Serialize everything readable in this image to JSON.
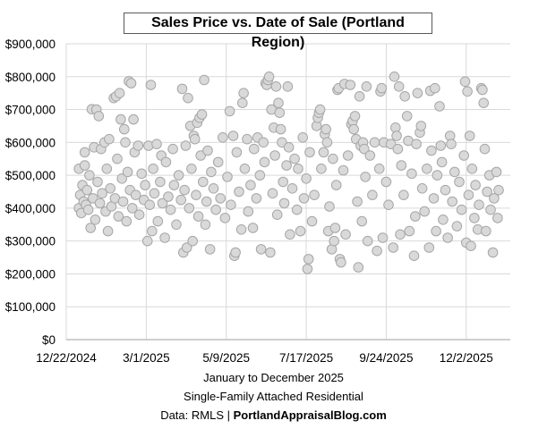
{
  "chart_data": {
    "type": "scatter",
    "title": "Sales Price vs. Date of Sale (Portland Region)",
    "captions": [
      "January to December 2025",
      "Single-Family Attached Residential"
    ],
    "source_label": "Data: RMLS |",
    "source_site": "PortlandAppraisalBlog.com",
    "xlim": [
      "2024-12-22",
      "2026-01-09"
    ],
    "ylim": [
      0,
      900000
    ],
    "x_ticks": [
      "12/22/2024",
      "3/1/2025",
      "5/9/2025",
      "7/17/2025",
      "9/24/2025",
      "12/2/2025"
    ],
    "x_tick_dates": [
      "2024-12-22",
      "2025-03-01",
      "2025-05-09",
      "2025-07-17",
      "2025-09-24",
      "2025-12-02"
    ],
    "y_ticks": [
      "$0",
      "$100,000",
      "$200,000",
      "$300,000",
      "$400,000",
      "$500,000",
      "$600,000",
      "$700,000",
      "$800,000",
      "$900,000"
    ],
    "y_tick_values": [
      0,
      100000,
      200000,
      300000,
      400000,
      500000,
      600000,
      700000,
      800000,
      900000
    ],
    "grid": true,
    "legend": "none",
    "colors": {
      "marker_fill": "#d9d9d9",
      "marker_stroke": "#a6a6a6",
      "grid": "#d9d9d9"
    },
    "points": [
      [
        "2025-01-02",
        400000
      ],
      [
        "2025-01-02",
        520000
      ],
      [
        "2025-01-03",
        440000
      ],
      [
        "2025-01-04",
        385000
      ],
      [
        "2025-01-05",
        470000
      ],
      [
        "2025-01-06",
        420000
      ],
      [
        "2025-01-07",
        570000
      ],
      [
        "2025-01-07",
        530000
      ],
      [
        "2025-01-08",
        410000
      ],
      [
        "2025-01-09",
        455000
      ],
      [
        "2025-01-10",
        395000
      ],
      [
        "2025-01-11",
        500000
      ],
      [
        "2025-01-12",
        340000
      ],
      [
        "2025-01-13",
        701000
      ],
      [
        "2025-01-14",
        430000
      ],
      [
        "2025-01-15",
        585000
      ],
      [
        "2025-01-16",
        365000
      ],
      [
        "2025-01-17",
        700000
      ],
      [
        "2025-01-18",
        480000
      ],
      [
        "2025-01-19",
        680000
      ],
      [
        "2025-01-20",
        415000
      ],
      [
        "2025-01-21",
        580000
      ],
      [
        "2025-01-22",
        445000
      ],
      [
        "2025-01-24",
        600000
      ],
      [
        "2025-01-25",
        390000
      ],
      [
        "2025-01-26",
        520000
      ],
      [
        "2025-01-27",
        330000
      ],
      [
        "2025-01-28",
        610000
      ],
      [
        "2025-01-29",
        460000
      ],
      [
        "2025-01-30",
        405000
      ],
      [
        "2025-02-01",
        735000
      ],
      [
        "2025-02-02",
        430000
      ],
      [
        "2025-02-03",
        740000
      ],
      [
        "2025-02-04",
        550000
      ],
      [
        "2025-02-05",
        375000
      ],
      [
        "2025-02-06",
        750000
      ],
      [
        "2025-02-07",
        670000
      ],
      [
        "2025-02-08",
        490000
      ],
      [
        "2025-02-09",
        420000
      ],
      [
        "2025-02-10",
        640000
      ],
      [
        "2025-02-11",
        600000
      ],
      [
        "2025-02-12",
        360000
      ],
      [
        "2025-02-13",
        510000
      ],
      [
        "2025-02-14",
        786000
      ],
      [
        "2025-02-15",
        455000
      ],
      [
        "2025-02-16",
        780000
      ],
      [
        "2025-02-17",
        400000
      ],
      [
        "2025-02-18",
        670000
      ],
      [
        "2025-02-19",
        570000
      ],
      [
        "2025-02-20",
        440000
      ],
      [
        "2025-02-22",
        590000
      ],
      [
        "2025-02-23",
        380000
      ],
      [
        "2025-02-25",
        505000
      ],
      [
        "2025-02-27",
        425000
      ],
      [
        "2025-02-28",
        470000
      ],
      [
        "2025-03-02",
        300000
      ],
      [
        "2025-03-03",
        590000
      ],
      [
        "2025-03-04",
        410000
      ],
      [
        "2025-03-05",
        775000
      ],
      [
        "2025-03-06",
        330000
      ],
      [
        "2025-03-07",
        520000
      ],
      [
        "2025-03-08",
        445000
      ],
      [
        "2025-03-10",
        595000
      ],
      [
        "2025-03-11",
        360000
      ],
      [
        "2025-03-13",
        480000
      ],
      [
        "2025-03-14",
        560000
      ],
      [
        "2025-03-15",
        415000
      ],
      [
        "2025-03-17",
        310000
      ],
      [
        "2025-03-18",
        540000
      ],
      [
        "2025-03-20",
        435000
      ],
      [
        "2025-03-22",
        395000
      ],
      [
        "2025-03-24",
        580000
      ],
      [
        "2025-03-25",
        470000
      ],
      [
        "2025-03-27",
        350000
      ],
      [
        "2025-03-29",
        500000
      ],
      [
        "2025-03-31",
        425000
      ],
      [
        "2025-04-01",
        763000
      ],
      [
        "2025-04-02",
        265000
      ],
      [
        "2025-04-03",
        455000
      ],
      [
        "2025-04-04",
        590000
      ],
      [
        "2025-04-05",
        280000
      ],
      [
        "2025-04-06",
        735000
      ],
      [
        "2025-04-07",
        400000
      ],
      [
        "2025-04-08",
        650000
      ],
      [
        "2025-04-09",
        520000
      ],
      [
        "2025-04-10",
        300000
      ],
      [
        "2025-04-11",
        620000
      ],
      [
        "2025-04-12",
        610000
      ],
      [
        "2025-04-13",
        440000
      ],
      [
        "2025-04-14",
        660000
      ],
      [
        "2025-04-15",
        375000
      ],
      [
        "2025-04-16",
        675000
      ],
      [
        "2025-04-17",
        560000
      ],
      [
        "2025-04-18",
        685000
      ],
      [
        "2025-04-19",
        480000
      ],
      [
        "2025-04-20",
        790000
      ],
      [
        "2025-04-21",
        350000
      ],
      [
        "2025-04-22",
        420000
      ],
      [
        "2025-04-23",
        575000
      ],
      [
        "2025-04-25",
        275000
      ],
      [
        "2025-04-26",
        510000
      ],
      [
        "2025-04-28",
        460000
      ],
      [
        "2025-04-30",
        395000
      ],
      [
        "2025-05-02",
        540000
      ],
      [
        "2025-05-04",
        430000
      ],
      [
        "2025-05-06",
        615000
      ],
      [
        "2025-05-08",
        370000
      ],
      [
        "2025-05-10",
        495000
      ],
      [
        "2025-05-12",
        695000
      ],
      [
        "2025-05-13",
        410000
      ],
      [
        "2025-05-15",
        620000
      ],
      [
        "2025-05-16",
        255000
      ],
      [
        "2025-05-17",
        265000
      ],
      [
        "2025-05-18",
        570000
      ],
      [
        "2025-05-20",
        450000
      ],
      [
        "2025-05-22",
        335000
      ],
      [
        "2025-05-23",
        720000
      ],
      [
        "2025-05-24",
        750000
      ],
      [
        "2025-05-25",
        520000
      ],
      [
        "2025-05-27",
        610000
      ],
      [
        "2025-05-28",
        390000
      ],
      [
        "2025-05-30",
        470000
      ],
      [
        "2025-06-01",
        340000
      ],
      [
        "2025-06-02",
        580000
      ],
      [
        "2025-06-04",
        430000
      ],
      [
        "2025-06-05",
        615000
      ],
      [
        "2025-06-07",
        500000
      ],
      [
        "2025-06-08",
        275000
      ],
      [
        "2025-06-10",
        600000
      ],
      [
        "2025-06-11",
        540000
      ],
      [
        "2025-06-12",
        780000
      ],
      [
        "2025-06-13",
        775000
      ],
      [
        "2025-06-14",
        790000
      ],
      [
        "2025-06-15",
        800000
      ],
      [
        "2025-06-16",
        265000
      ],
      [
        "2025-06-17",
        700000
      ],
      [
        "2025-06-18",
        445000
      ],
      [
        "2025-06-19",
        645000
      ],
      [
        "2025-06-20",
        560000
      ],
      [
        "2025-06-21",
        770000
      ],
      [
        "2025-06-22",
        380000
      ],
      [
        "2025-06-23",
        720000
      ],
      [
        "2025-06-24",
        690000
      ],
      [
        "2025-06-25",
        640000
      ],
      [
        "2025-06-26",
        600000
      ],
      [
        "2025-06-27",
        480000
      ],
      [
        "2025-06-28",
        415000
      ],
      [
        "2025-06-30",
        530000
      ],
      [
        "2025-07-01",
        770000
      ],
      [
        "2025-07-02",
        585000
      ],
      [
        "2025-07-03",
        320000
      ],
      [
        "2025-07-05",
        460000
      ],
      [
        "2025-07-07",
        550000
      ],
      [
        "2025-07-09",
        395000
      ],
      [
        "2025-07-10",
        520000
      ],
      [
        "2025-07-12",
        330000
      ],
      [
        "2025-07-14",
        615000
      ],
      [
        "2025-07-15",
        430000
      ],
      [
        "2025-07-17",
        490000
      ],
      [
        "2025-07-18",
        215000
      ],
      [
        "2025-07-19",
        245000
      ],
      [
        "2025-07-20",
        570000
      ],
      [
        "2025-07-22",
        360000
      ],
      [
        "2025-07-24",
        440000
      ],
      [
        "2025-07-26",
        650000
      ],
      [
        "2025-07-27",
        675000
      ],
      [
        "2025-07-28",
        690000
      ],
      [
        "2025-07-29",
        700000
      ],
      [
        "2025-07-30",
        520000
      ],
      [
        "2025-08-01",
        570000
      ],
      [
        "2025-08-02",
        625000
      ],
      [
        "2025-08-03",
        640000
      ],
      [
        "2025-08-04",
        600000
      ],
      [
        "2025-08-05",
        330000
      ],
      [
        "2025-08-06",
        405000
      ],
      [
        "2025-08-08",
        275000
      ],
      [
        "2025-08-09",
        550000
      ],
      [
        "2025-08-10",
        300000
      ],
      [
        "2025-08-11",
        340000
      ],
      [
        "2025-08-12",
        470000
      ],
      [
        "2025-08-13",
        760000
      ],
      [
        "2025-08-14",
        765000
      ],
      [
        "2025-08-15",
        245000
      ],
      [
        "2025-08-16",
        235000
      ],
      [
        "2025-08-18",
        515000
      ],
      [
        "2025-08-19",
        778000
      ],
      [
        "2025-08-20",
        320000
      ],
      [
        "2025-08-22",
        560000
      ],
      [
        "2025-08-24",
        775000
      ],
      [
        "2025-08-25",
        655000
      ],
      [
        "2025-08-26",
        665000
      ],
      [
        "2025-08-27",
        640000
      ],
      [
        "2025-08-28",
        680000
      ],
      [
        "2025-08-29",
        610000
      ],
      [
        "2025-08-30",
        420000
      ],
      [
        "2025-08-31",
        220000
      ],
      [
        "2025-09-01",
        740000
      ],
      [
        "2025-09-02",
        590000
      ],
      [
        "2025-09-03",
        360000
      ],
      [
        "2025-09-04",
        600000
      ],
      [
        "2025-09-05",
        580000
      ],
      [
        "2025-09-06",
        495000
      ],
      [
        "2025-09-07",
        770000
      ],
      [
        "2025-09-08",
        300000
      ],
      [
        "2025-09-10",
        560000
      ],
      [
        "2025-09-12",
        440000
      ],
      [
        "2025-09-14",
        600000
      ],
      [
        "2025-09-16",
        270000
      ],
      [
        "2025-09-18",
        520000
      ],
      [
        "2025-09-19",
        755000
      ],
      [
        "2025-09-20",
        765000
      ],
      [
        "2025-09-21",
        310000
      ],
      [
        "2025-09-22",
        600000
      ],
      [
        "2025-09-24",
        480000
      ],
      [
        "2025-09-26",
        410000
      ],
      [
        "2025-09-28",
        595000
      ],
      [
        "2025-09-30",
        280000
      ],
      [
        "2025-10-01",
        800000
      ],
      [
        "2025-10-02",
        645000
      ],
      [
        "2025-10-03",
        620000
      ],
      [
        "2025-10-04",
        580000
      ],
      [
        "2025-10-05",
        770000
      ],
      [
        "2025-10-06",
        320000
      ],
      [
        "2025-10-07",
        530000
      ],
      [
        "2025-10-09",
        440000
      ],
      [
        "2025-10-10",
        740000
      ],
      [
        "2025-10-12",
        680000
      ],
      [
        "2025-10-13",
        605000
      ],
      [
        "2025-10-14",
        330000
      ],
      [
        "2025-10-16",
        505000
      ],
      [
        "2025-10-18",
        255000
      ],
      [
        "2025-10-19",
        375000
      ],
      [
        "2025-10-20",
        595000
      ],
      [
        "2025-10-21",
        750000
      ],
      [
        "2025-10-23",
        630000
      ],
      [
        "2025-10-24",
        650000
      ],
      [
        "2025-10-25",
        460000
      ],
      [
        "2025-10-27",
        390000
      ],
      [
        "2025-10-29",
        520000
      ],
      [
        "2025-10-31",
        280000
      ],
      [
        "2025-11-01",
        757000
      ],
      [
        "2025-11-02",
        575000
      ],
      [
        "2025-11-04",
        430000
      ],
      [
        "2025-11-05",
        765000
      ],
      [
        "2025-11-06",
        330000
      ],
      [
        "2025-11-07",
        500000
      ],
      [
        "2025-11-09",
        710000
      ],
      [
        "2025-11-10",
        590000
      ],
      [
        "2025-11-11",
        540000
      ],
      [
        "2025-11-12",
        365000
      ],
      [
        "2025-11-14",
        455000
      ],
      [
        "2025-11-16",
        310000
      ],
      [
        "2025-11-18",
        620000
      ],
      [
        "2025-11-19",
        595000
      ],
      [
        "2025-11-20",
        420000
      ],
      [
        "2025-11-22",
        510000
      ],
      [
        "2025-11-24",
        345000
      ],
      [
        "2025-11-26",
        480000
      ],
      [
        "2025-11-28",
        395000
      ],
      [
        "2025-11-30",
        560000
      ],
      [
        "2025-12-01",
        785000
      ],
      [
        "2025-12-02",
        295000
      ],
      [
        "2025-12-03",
        755000
      ],
      [
        "2025-12-04",
        440000
      ],
      [
        "2025-12-05",
        620000
      ],
      [
        "2025-12-06",
        285000
      ],
      [
        "2025-12-07",
        520000
      ],
      [
        "2025-12-09",
        370000
      ],
      [
        "2025-12-10",
        470000
      ],
      [
        "2025-12-12",
        335000
      ],
      [
        "2025-12-13",
        410000
      ],
      [
        "2025-12-15",
        765000
      ],
      [
        "2025-12-16",
        760000
      ],
      [
        "2025-12-17",
        720000
      ],
      [
        "2025-12-18",
        580000
      ],
      [
        "2025-12-19",
        330000
      ],
      [
        "2025-12-20",
        450000
      ],
      [
        "2025-12-22",
        500000
      ],
      [
        "2025-12-23",
        395000
      ],
      [
        "2025-12-25",
        265000
      ],
      [
        "2025-12-26",
        430000
      ],
      [
        "2025-12-28",
        510000
      ],
      [
        "2025-12-29",
        370000
      ],
      [
        "2025-12-30",
        455000
      ]
    ]
  }
}
